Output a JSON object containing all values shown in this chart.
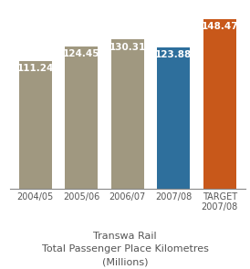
{
  "categories": [
    "2004/05",
    "2005/06",
    "2006/07",
    "2007/08",
    "TARGET\n2007/08"
  ],
  "values": [
    111.24,
    124.45,
    130.31,
    123.88,
    148.47
  ],
  "bar_colors": [
    "#a09880",
    "#a09880",
    "#a09880",
    "#2e6f9c",
    "#c8581a"
  ],
  "value_labels": [
    "111.24",
    "124.45",
    "130.31",
    "123.88",
    "148.47"
  ],
  "title_line1": "Transwa Rail",
  "title_line2": "Total Passenger Place Kilometres",
  "title_line3": "(Millions)",
  "ylim": [
    0,
    158
  ],
  "background_color": "#ffffff",
  "label_color": "#ffffff",
  "title_color": "#555555",
  "tick_color": "#555555",
  "title_fontsize": 8.0,
  "bar_label_fontsize": 7.5,
  "tick_fontsize": 7.0,
  "bar_width": 0.72
}
